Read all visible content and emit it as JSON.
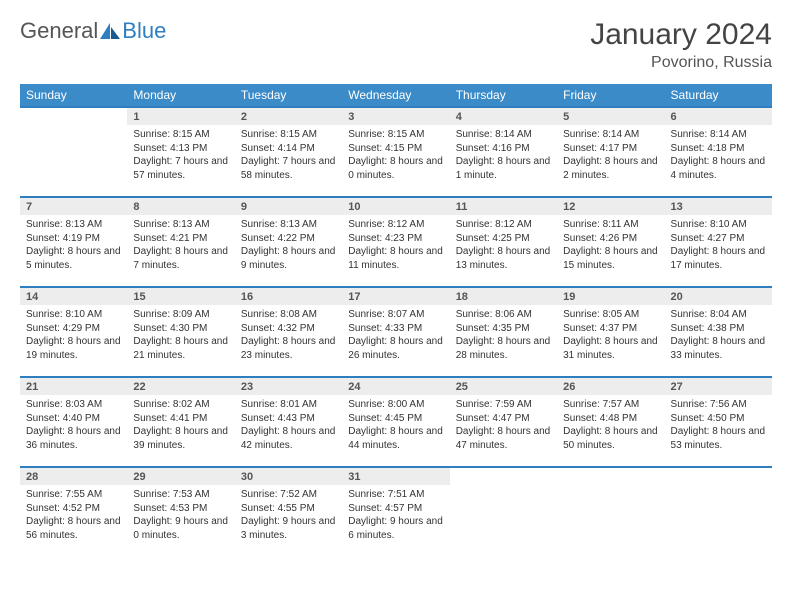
{
  "brand": {
    "part1": "General",
    "part2": "Blue"
  },
  "title": "January 2024",
  "location": "Povorino, Russia",
  "colors": {
    "header_bg": "#3b8bc9",
    "header_text": "#ffffff",
    "day_number_bg": "#ededed",
    "row_border": "#2f7ec2",
    "text": "#333333"
  },
  "day_headers": [
    "Sunday",
    "Monday",
    "Tuesday",
    "Wednesday",
    "Thursday",
    "Friday",
    "Saturday"
  ],
  "weeks": [
    [
      {
        "n": "",
        "sunrise": "",
        "sunset": "",
        "daylight": ""
      },
      {
        "n": "1",
        "sunrise": "Sunrise: 8:15 AM",
        "sunset": "Sunset: 4:13 PM",
        "daylight": "Daylight: 7 hours and 57 minutes."
      },
      {
        "n": "2",
        "sunrise": "Sunrise: 8:15 AM",
        "sunset": "Sunset: 4:14 PM",
        "daylight": "Daylight: 7 hours and 58 minutes."
      },
      {
        "n": "3",
        "sunrise": "Sunrise: 8:15 AM",
        "sunset": "Sunset: 4:15 PM",
        "daylight": "Daylight: 8 hours and 0 minutes."
      },
      {
        "n": "4",
        "sunrise": "Sunrise: 8:14 AM",
        "sunset": "Sunset: 4:16 PM",
        "daylight": "Daylight: 8 hours and 1 minute."
      },
      {
        "n": "5",
        "sunrise": "Sunrise: 8:14 AM",
        "sunset": "Sunset: 4:17 PM",
        "daylight": "Daylight: 8 hours and 2 minutes."
      },
      {
        "n": "6",
        "sunrise": "Sunrise: 8:14 AM",
        "sunset": "Sunset: 4:18 PM",
        "daylight": "Daylight: 8 hours and 4 minutes."
      }
    ],
    [
      {
        "n": "7",
        "sunrise": "Sunrise: 8:13 AM",
        "sunset": "Sunset: 4:19 PM",
        "daylight": "Daylight: 8 hours and 5 minutes."
      },
      {
        "n": "8",
        "sunrise": "Sunrise: 8:13 AM",
        "sunset": "Sunset: 4:21 PM",
        "daylight": "Daylight: 8 hours and 7 minutes."
      },
      {
        "n": "9",
        "sunrise": "Sunrise: 8:13 AM",
        "sunset": "Sunset: 4:22 PM",
        "daylight": "Daylight: 8 hours and 9 minutes."
      },
      {
        "n": "10",
        "sunrise": "Sunrise: 8:12 AM",
        "sunset": "Sunset: 4:23 PM",
        "daylight": "Daylight: 8 hours and 11 minutes."
      },
      {
        "n": "11",
        "sunrise": "Sunrise: 8:12 AM",
        "sunset": "Sunset: 4:25 PM",
        "daylight": "Daylight: 8 hours and 13 minutes."
      },
      {
        "n": "12",
        "sunrise": "Sunrise: 8:11 AM",
        "sunset": "Sunset: 4:26 PM",
        "daylight": "Daylight: 8 hours and 15 minutes."
      },
      {
        "n": "13",
        "sunrise": "Sunrise: 8:10 AM",
        "sunset": "Sunset: 4:27 PM",
        "daylight": "Daylight: 8 hours and 17 minutes."
      }
    ],
    [
      {
        "n": "14",
        "sunrise": "Sunrise: 8:10 AM",
        "sunset": "Sunset: 4:29 PM",
        "daylight": "Daylight: 8 hours and 19 minutes."
      },
      {
        "n": "15",
        "sunrise": "Sunrise: 8:09 AM",
        "sunset": "Sunset: 4:30 PM",
        "daylight": "Daylight: 8 hours and 21 minutes."
      },
      {
        "n": "16",
        "sunrise": "Sunrise: 8:08 AM",
        "sunset": "Sunset: 4:32 PM",
        "daylight": "Daylight: 8 hours and 23 minutes."
      },
      {
        "n": "17",
        "sunrise": "Sunrise: 8:07 AM",
        "sunset": "Sunset: 4:33 PM",
        "daylight": "Daylight: 8 hours and 26 minutes."
      },
      {
        "n": "18",
        "sunrise": "Sunrise: 8:06 AM",
        "sunset": "Sunset: 4:35 PM",
        "daylight": "Daylight: 8 hours and 28 minutes."
      },
      {
        "n": "19",
        "sunrise": "Sunrise: 8:05 AM",
        "sunset": "Sunset: 4:37 PM",
        "daylight": "Daylight: 8 hours and 31 minutes."
      },
      {
        "n": "20",
        "sunrise": "Sunrise: 8:04 AM",
        "sunset": "Sunset: 4:38 PM",
        "daylight": "Daylight: 8 hours and 33 minutes."
      }
    ],
    [
      {
        "n": "21",
        "sunrise": "Sunrise: 8:03 AM",
        "sunset": "Sunset: 4:40 PM",
        "daylight": "Daylight: 8 hours and 36 minutes."
      },
      {
        "n": "22",
        "sunrise": "Sunrise: 8:02 AM",
        "sunset": "Sunset: 4:41 PM",
        "daylight": "Daylight: 8 hours and 39 minutes."
      },
      {
        "n": "23",
        "sunrise": "Sunrise: 8:01 AM",
        "sunset": "Sunset: 4:43 PM",
        "daylight": "Daylight: 8 hours and 42 minutes."
      },
      {
        "n": "24",
        "sunrise": "Sunrise: 8:00 AM",
        "sunset": "Sunset: 4:45 PM",
        "daylight": "Daylight: 8 hours and 44 minutes."
      },
      {
        "n": "25",
        "sunrise": "Sunrise: 7:59 AM",
        "sunset": "Sunset: 4:47 PM",
        "daylight": "Daylight: 8 hours and 47 minutes."
      },
      {
        "n": "26",
        "sunrise": "Sunrise: 7:57 AM",
        "sunset": "Sunset: 4:48 PM",
        "daylight": "Daylight: 8 hours and 50 minutes."
      },
      {
        "n": "27",
        "sunrise": "Sunrise: 7:56 AM",
        "sunset": "Sunset: 4:50 PM",
        "daylight": "Daylight: 8 hours and 53 minutes."
      }
    ],
    [
      {
        "n": "28",
        "sunrise": "Sunrise: 7:55 AM",
        "sunset": "Sunset: 4:52 PM",
        "daylight": "Daylight: 8 hours and 56 minutes."
      },
      {
        "n": "29",
        "sunrise": "Sunrise: 7:53 AM",
        "sunset": "Sunset: 4:53 PM",
        "daylight": "Daylight: 9 hours and 0 minutes."
      },
      {
        "n": "30",
        "sunrise": "Sunrise: 7:52 AM",
        "sunset": "Sunset: 4:55 PM",
        "daylight": "Daylight: 9 hours and 3 minutes."
      },
      {
        "n": "31",
        "sunrise": "Sunrise: 7:51 AM",
        "sunset": "Sunset: 4:57 PM",
        "daylight": "Daylight: 9 hours and 6 minutes."
      },
      {
        "n": "",
        "sunrise": "",
        "sunset": "",
        "daylight": ""
      },
      {
        "n": "",
        "sunrise": "",
        "sunset": "",
        "daylight": ""
      },
      {
        "n": "",
        "sunrise": "",
        "sunset": "",
        "daylight": ""
      }
    ]
  ]
}
